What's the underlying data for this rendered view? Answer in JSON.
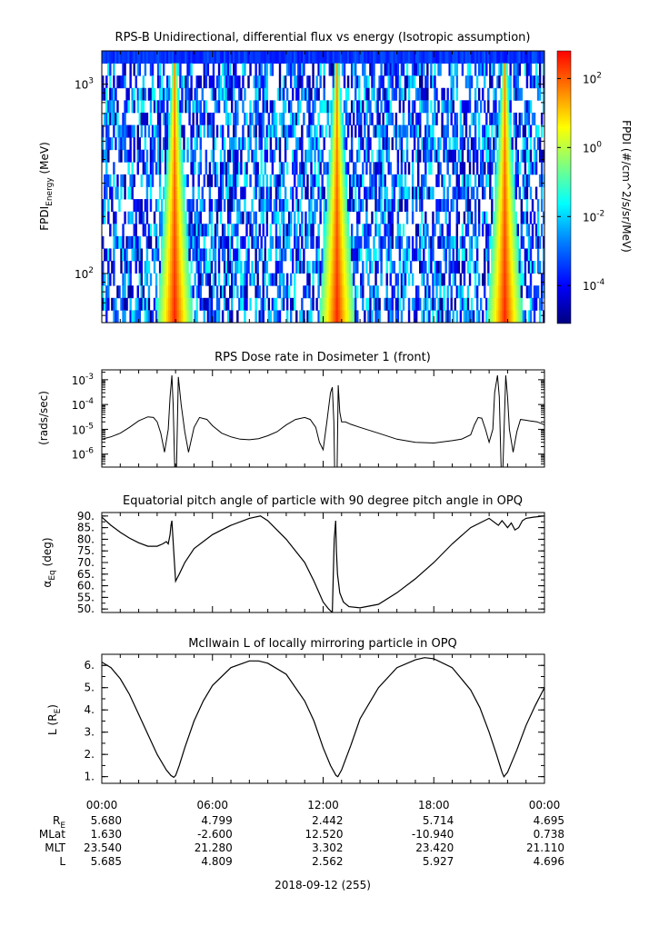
{
  "colors": {
    "background": "#ffffff",
    "axis": "#000000",
    "spectrogram_floor": "#000000",
    "colorscale": [
      "#00007f",
      "#0000ff",
      "#0080ff",
      "#00ffff",
      "#7fff7f",
      "#ffff00",
      "#ff8000",
      "#ff0000"
    ]
  },
  "chart_data": [
    {
      "type": "heatmap",
      "title": "RPS-B  Unidirectional, differential flux vs energy (Isotropic assumption)",
      "ylabel": {
        "main": "FPDI",
        "sub": "Energy",
        "tail": " (MeV)"
      },
      "yscale": "log",
      "ylim": [
        55,
        1500
      ],
      "yticks": [
        {
          "base": "10",
          "exp": "2",
          "value": 100
        },
        {
          "base": "10",
          "exp": "3",
          "value": 1000
        }
      ],
      "xlim": [
        0,
        24
      ],
      "colorbar": {
        "label": "FPDI (#/cm^2/s/sr/MeV)",
        "scale": "log",
        "range_log10": [
          -5.1,
          2.8
        ],
        "ticks": [
          {
            "base": "10",
            "exp": "-4",
            "log10": -4
          },
          {
            "base": "10",
            "exp": "-2",
            "log10": -2
          },
          {
            "base": "10",
            "exp": "0",
            "log10": 0
          },
          {
            "base": "10",
            "exp": "2",
            "log10": 2
          }
        ]
      },
      "perigee_peaks_hours": [
        3.9,
        12.7,
        21.8
      ],
      "peak_flux_log10": 2.5,
      "background_flux_log10": [
        -5,
        -2
      ]
    },
    {
      "type": "line",
      "title": "RPS  Dose rate in Dosimeter 1 (front)",
      "ylabel": "(rads/sec)",
      "yscale": "log",
      "ylim": [
        3e-07,
        0.0025
      ],
      "xlim": [
        0,
        24
      ],
      "yticks": [
        {
          "base": "10",
          "exp": "-3",
          "value": 0.001
        },
        {
          "base": "10",
          "exp": "-4",
          "value": 0.0001
        },
        {
          "base": "10",
          "exp": "-5",
          "value": 1e-05
        },
        {
          "base": "10",
          "exp": "-6",
          "value": 1e-06
        }
      ],
      "x": [
        0,
        0.5,
        1.0,
        1.5,
        2.0,
        2.5,
        2.8,
        3.0,
        3.2,
        3.4,
        3.6,
        3.7,
        3.8,
        3.87,
        3.95,
        4.05,
        4.15,
        4.3,
        4.5,
        4.7,
        5.0,
        5.3,
        5.7,
        6.0,
        6.5,
        7.0,
        7.5,
        8.0,
        8.5,
        9.0,
        9.5,
        10.0,
        10.5,
        11.0,
        11.3,
        11.6,
        11.8,
        12.0,
        12.2,
        12.4,
        12.5,
        12.58,
        12.62,
        12.7,
        12.76,
        12.82,
        12.9,
        13.0,
        13.2,
        13.5,
        14.0,
        15.0,
        16.0,
        17.0,
        18.0,
        19.0,
        19.5,
        20.0,
        20.2,
        20.4,
        20.6,
        20.8,
        21.0,
        21.2,
        21.3,
        21.45,
        21.55,
        21.65,
        21.75,
        21.9,
        22.0,
        22.1,
        22.3,
        22.5,
        22.7,
        22.9,
        23.2,
        23.6,
        24.0
      ],
      "y": [
        4e-06,
        5e-06,
        7e-06,
        1.2e-05,
        2.2e-05,
        3.2e-05,
        3e-05,
        2e-05,
        7e-06,
        1.2e-06,
        1e-05,
        0.0002,
        0.0015,
        0.0001,
        3e-07,
        3e-07,
        0.0013,
        0.0001,
        8e-06,
        1.2e-06,
        1.2e-05,
        3e-05,
        2.5e-05,
        1.4e-05,
        7e-06,
        5e-06,
        4e-06,
        3.8e-06,
        4.2e-06,
        5.5e-06,
        8e-06,
        1.5e-05,
        2.5e-05,
        3e-05,
        2.5e-05,
        1.2e-05,
        3e-06,
        1.5e-06,
        2e-05,
        0.0003,
        0.0005,
        2e-05,
        3e-07,
        3e-07,
        3e-07,
        0.0006,
        5e-05,
        2e-05,
        2e-05,
        1.6e-05,
        1.2e-05,
        7e-06,
        4e-06,
        3e-06,
        2.8e-06,
        3.5e-06,
        4e-06,
        6e-06,
        1.5e-05,
        3e-05,
        2.8e-05,
        1e-05,
        3e-06,
        1e-05,
        0.0003,
        0.0015,
        0.0002,
        3e-07,
        3e-07,
        0.0015,
        0.0002,
        1e-05,
        1.2e-06,
        8e-06,
        2.5e-05,
        2.4e-05,
        2.2e-05,
        2e-05,
        1.5e-05
      ]
    },
    {
      "type": "line",
      "title": "Equatorial pitch angle of particle with 90 degree pitch angle in OPQ",
      "ylabel": {
        "main": "α",
        "sub": "Eq",
        "tail": " (deg)"
      },
      "ylim": [
        48.5,
        91.5
      ],
      "xlim": [
        0,
        24
      ],
      "yticks": [
        50,
        55,
        60,
        65,
        70,
        75,
        80,
        85,
        90
      ],
      "ytick_labels": [
        "50.",
        "55.",
        "60.",
        "65.",
        "70.",
        "75.",
        "80.",
        "85.",
        "90."
      ],
      "x": [
        0,
        0.5,
        1.0,
        1.5,
        2.0,
        2.5,
        3.0,
        3.3,
        3.5,
        3.6,
        3.7,
        3.75,
        3.8,
        3.9,
        4.0,
        4.2,
        4.5,
        5.0,
        6.0,
        7.0,
        8.0,
        8.6,
        9.0,
        10.0,
        11.0,
        11.5,
        12.0,
        12.3,
        12.5,
        12.6,
        12.68,
        12.72,
        12.78,
        12.9,
        13.1,
        13.4,
        14.0,
        15.0,
        16.0,
        17.0,
        18.0,
        19.0,
        20.0,
        21.0,
        21.5,
        21.7,
        21.8,
        22.0,
        22.2,
        22.4,
        22.6,
        22.8,
        23.0,
        23.4,
        24.0
      ],
      "y": [
        89.5,
        86,
        83,
        80.5,
        78.5,
        77,
        77,
        78,
        79,
        78,
        82,
        86,
        88,
        75,
        62,
        65,
        70,
        76,
        82,
        86,
        89,
        90,
        88,
        80,
        70,
        62,
        53,
        50,
        48.5,
        80,
        88,
        75,
        65,
        57,
        53,
        51,
        50.5,
        52,
        57,
        63,
        70,
        78,
        85,
        89,
        86,
        88,
        87,
        85,
        87,
        84,
        85,
        88,
        89,
        89.5,
        90
      ]
    },
    {
      "type": "line",
      "title": "McIlwain L of locally mirroring particle in OPQ",
      "ylabel": {
        "main": "L (R",
        "sub": "E",
        "tail": ")"
      },
      "ylim": [
        0.7,
        6.5
      ],
      "xlim": [
        0,
        24
      ],
      "yticks": [
        1.0,
        2.0,
        3.0,
        4.0,
        5.0,
        6.0
      ],
      "ytick_labels": [
        "1.",
        "2.",
        "3.",
        "4.",
        "5.",
        "6."
      ],
      "x": [
        0,
        0.5,
        1.0,
        1.5,
        2.0,
        2.5,
        3.0,
        3.5,
        3.75,
        3.9,
        4.0,
        4.2,
        4.5,
        5.0,
        5.5,
        6.0,
        7.0,
        8.0,
        8.5,
        9.0,
        10.0,
        11.0,
        11.5,
        12.0,
        12.4,
        12.7,
        12.8,
        13.0,
        13.5,
        14.0,
        15.0,
        16.0,
        17.0,
        17.5,
        18.0,
        19.0,
        20.0,
        20.5,
        21.0,
        21.4,
        21.7,
        21.8,
        22.0,
        22.5,
        23.0,
        23.5,
        24.0
      ],
      "y": [
        6.15,
        5.9,
        5.4,
        4.7,
        3.8,
        2.9,
        2.0,
        1.3,
        1.05,
        0.97,
        1.05,
        1.5,
        2.3,
        3.5,
        4.4,
        5.1,
        5.9,
        6.2,
        6.2,
        6.1,
        5.6,
        4.4,
        3.5,
        2.3,
        1.5,
        1.05,
        1.0,
        1.3,
        2.4,
        3.6,
        5.0,
        5.9,
        6.25,
        6.35,
        6.3,
        5.9,
        4.9,
        4.1,
        3.0,
        2.0,
        1.2,
        1.0,
        1.2,
        2.2,
        3.3,
        4.2,
        5.0
      ]
    }
  ],
  "time_axis": {
    "tick_labels": [
      "00:00",
      "06:00",
      "12:00",
      "18:00",
      "00:00"
    ],
    "tick_hours": [
      0,
      6,
      12,
      18,
      24
    ],
    "date_label": "2018-09-12 (255)"
  },
  "ephemeris": {
    "rows": [
      {
        "label_main": "R",
        "label_sub": "E",
        "values": [
          "5.680",
          "4.799",
          "2.442",
          "5.714",
          "4.695"
        ]
      },
      {
        "label_main": "MLat",
        "label_sub": "",
        "values": [
          "1.630",
          "-2.600",
          "12.520",
          "-10.940",
          "0.738"
        ]
      },
      {
        "label_main": "MLT",
        "label_sub": "",
        "values": [
          "23.540",
          "21.280",
          "3.302",
          "23.420",
          "21.110"
        ]
      },
      {
        "label_main": "L",
        "label_sub": "",
        "values": [
          "5.685",
          "4.809",
          "2.562",
          "5.927",
          "4.696"
        ]
      }
    ]
  }
}
